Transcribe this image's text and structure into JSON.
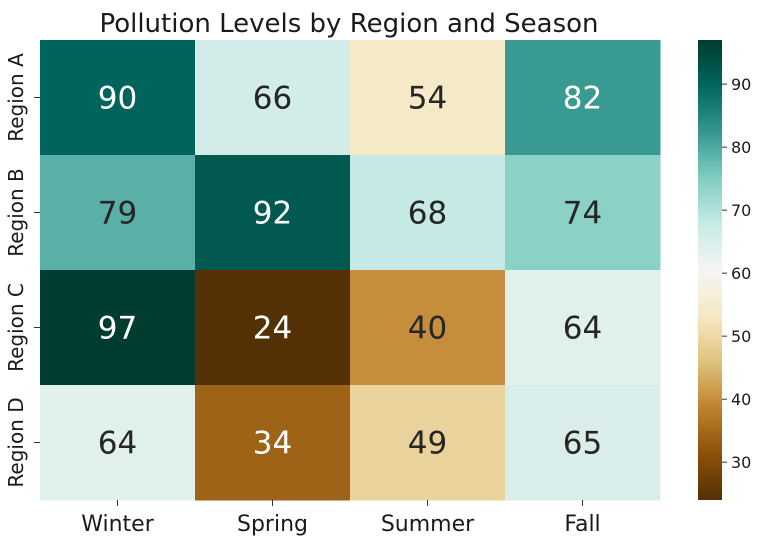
{
  "chart_data": {
    "type": "heatmap",
    "title": "Pollution Levels by Region and Season",
    "xlabel": "",
    "ylabel": "",
    "columns": [
      "Winter",
      "Spring",
      "Summer",
      "Fall"
    ],
    "rows": [
      "Region A",
      "Region B",
      "Region C",
      "Region D"
    ],
    "values": [
      [
        90,
        66,
        54,
        82
      ],
      [
        79,
        92,
        68,
        74
      ],
      [
        97,
        24,
        40,
        64
      ],
      [
        64,
        34,
        49,
        65
      ]
    ],
    "colormap": "BrBG",
    "vmin": 24,
    "vmax": 97,
    "colorbar_ticks": [
      30,
      40,
      50,
      60,
      70,
      80,
      90
    ],
    "annotations": true,
    "grid": false
  }
}
